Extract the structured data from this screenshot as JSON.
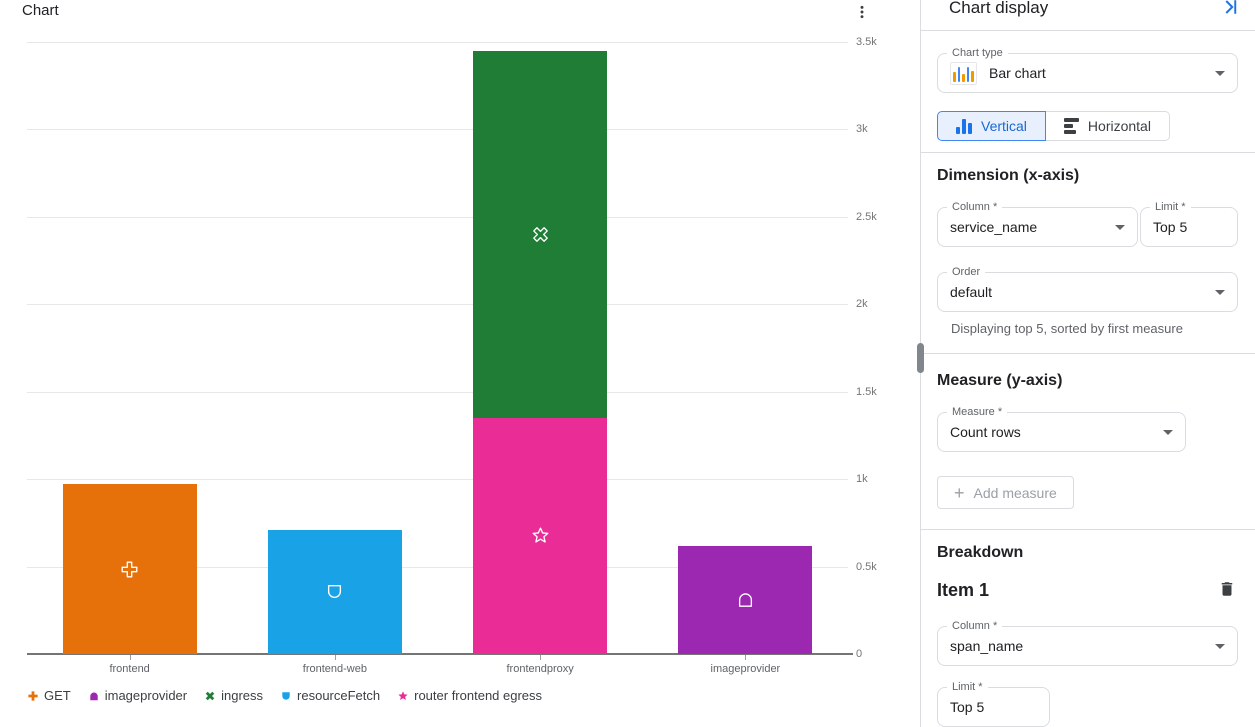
{
  "chart": {
    "title": "Chart",
    "menu_icon": "more-vert-icon"
  },
  "chart_data": {
    "type": "bar",
    "stacked": true,
    "orientation": "vertical",
    "categories": [
      "frontend",
      "frontend-web",
      "frontendproxy",
      "imageprovider"
    ],
    "series": [
      {
        "name": "GET",
        "color": "#e6710a",
        "icon": "cross"
      },
      {
        "name": "imageprovider",
        "color": "#9c27b0",
        "icon": "dome"
      },
      {
        "name": "ingress",
        "color": "#1f7d36",
        "icon": "xcross"
      },
      {
        "name": "resourceFetch",
        "color": "#1aa2e7",
        "icon": "shield"
      },
      {
        "name": "router frontend egress",
        "color": "#ea2d96",
        "icon": "star"
      }
    ],
    "bars": [
      {
        "category": "frontend",
        "segments": [
          {
            "series": "GET",
            "value": 970
          }
        ]
      },
      {
        "category": "frontend-web",
        "segments": [
          {
            "series": "resourceFetch",
            "value": 710
          }
        ]
      },
      {
        "category": "frontendproxy",
        "segments": [
          {
            "series": "router frontend egress",
            "value": 1350
          },
          {
            "series": "ingress",
            "value": 2100
          }
        ]
      },
      {
        "category": "imageprovider",
        "segments": [
          {
            "series": "imageprovider",
            "value": 620
          }
        ]
      }
    ],
    "y_ticks": [
      {
        "label": "3.5k",
        "value": 3500
      },
      {
        "label": "3k",
        "value": 3000
      },
      {
        "label": "2.5k",
        "value": 2500
      },
      {
        "label": "2k",
        "value": 2000
      },
      {
        "label": "1.5k",
        "value": 1500
      },
      {
        "label": "1k",
        "value": 1000
      },
      {
        "label": "0.5k",
        "value": 500
      },
      {
        "label": "0",
        "value": 0
      }
    ],
    "ylim": [
      0,
      3500
    ],
    "xlabel": "",
    "ylabel": "",
    "grid": true,
    "legend_position": "bottom",
    "title": "Chart"
  },
  "panel": {
    "title": "Chart display",
    "collapse_icon": "collapse-panel-right-icon",
    "chart_type": {
      "label": "Chart type",
      "value": "Bar chart"
    },
    "orientation": {
      "vertical_label": "Vertical",
      "horizontal_label": "Horizontal",
      "selected": "Vertical"
    },
    "dimension": {
      "heading": "Dimension (x-axis)",
      "column": {
        "label": "Column *",
        "value": "service_name"
      },
      "limit": {
        "label": "Limit *",
        "value": "Top 5"
      },
      "order": {
        "label": "Order",
        "value": "default"
      },
      "helper": "Displaying top 5, sorted by first measure"
    },
    "measure": {
      "heading": "Measure (y-axis)",
      "measure": {
        "label": "Measure *",
        "value": "Count rows"
      },
      "add_button_label": "Add measure"
    },
    "breakdown": {
      "heading": "Breakdown",
      "item_title": "Item 1",
      "column": {
        "label": "Column *",
        "value": "span_name"
      },
      "limit": {
        "label": "Limit *",
        "value": "Top 5"
      }
    }
  },
  "colors": {
    "accent_blue": "#1a73e8",
    "selected_toggle_bg": "#e8f0fe",
    "selected_toggle_text": "#1967d2",
    "border": "#dadce0",
    "muted_text": "#5f6368",
    "disabled_text": "#9aa0a6",
    "axis_text": "#757575",
    "gridline": "#e8e8e8",
    "axis_line": "#757575"
  }
}
